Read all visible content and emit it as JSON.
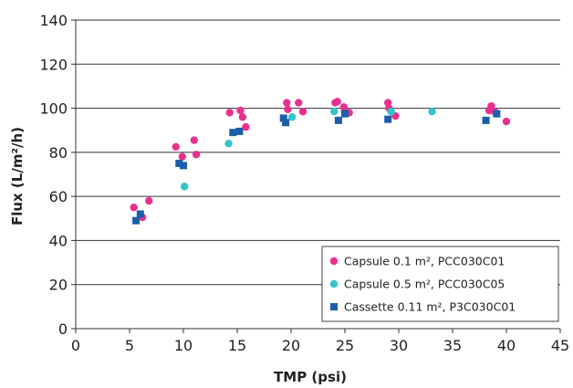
{
  "chart_data": {
    "type": "scatter",
    "xlabel": "TMP (psi)",
    "ylabel": "Flux (L/m²/h)",
    "xlim": [
      0,
      45
    ],
    "ylim": [
      0,
      140
    ],
    "x_ticks": [
      0,
      5,
      10,
      15,
      20,
      25,
      30,
      35,
      40,
      45
    ],
    "y_ticks": [
      0,
      20,
      40,
      60,
      80,
      100,
      120,
      140
    ],
    "x_tick_labels": [
      "0",
      "5",
      "10",
      "15",
      "20",
      "25",
      "30",
      "35",
      "40",
      "45"
    ],
    "y_tick_labels": [
      "0",
      "20",
      "40",
      "60",
      "80",
      "100",
      "120",
      "140"
    ],
    "grid": "horizontal",
    "legend_position": "lower-right",
    "series": [
      {
        "name": "Capsule 0.1 m², PCC030C01",
        "marker": "circle",
        "color": "#e8308f",
        "x": [
          5.4,
          6.2,
          6.8,
          9.3,
          9.9,
          11.0,
          11.2,
          14.3,
          15.3,
          15.5,
          15.8,
          19.6,
          19.7,
          20.7,
          21.1,
          24.1,
          24.3,
          24.9,
          25.0,
          25.4,
          29.0,
          29.1,
          29.7,
          38.4,
          38.6,
          38.9,
          40.0
        ],
        "y": [
          55,
          50.5,
          58,
          82.5,
          78,
          85.5,
          79,
          98,
          99,
          96,
          91.5,
          102.5,
          99.5,
          102.5,
          98.5,
          102.5,
          103,
          100.5,
          98.5,
          98,
          102.5,
          100,
          96.5,
          99,
          101,
          98.5,
          94
        ]
      },
      {
        "name": "Capsule 0.5 m², PCC030C05",
        "marker": "circle",
        "color": "#33c4cc",
        "x": [
          10.1,
          14.2,
          20.1,
          24.0,
          29.3,
          33.1
        ],
        "y": [
          64.5,
          84,
          96,
          98.5,
          98.5,
          98.5
        ]
      },
      {
        "name": "Cassette 0.11 m², P3C030C01",
        "marker": "square",
        "color": "#1a5fa8",
        "x": [
          5.6,
          6.0,
          9.6,
          10.0,
          14.6,
          15.2,
          19.3,
          19.5,
          24.4,
          25.0,
          29.0,
          38.1,
          39.1
        ],
        "y": [
          49,
          52,
          75,
          74,
          89,
          89.5,
          95.5,
          93.5,
          94.5,
          97.5,
          95,
          94.5,
          97.5
        ]
      }
    ]
  }
}
